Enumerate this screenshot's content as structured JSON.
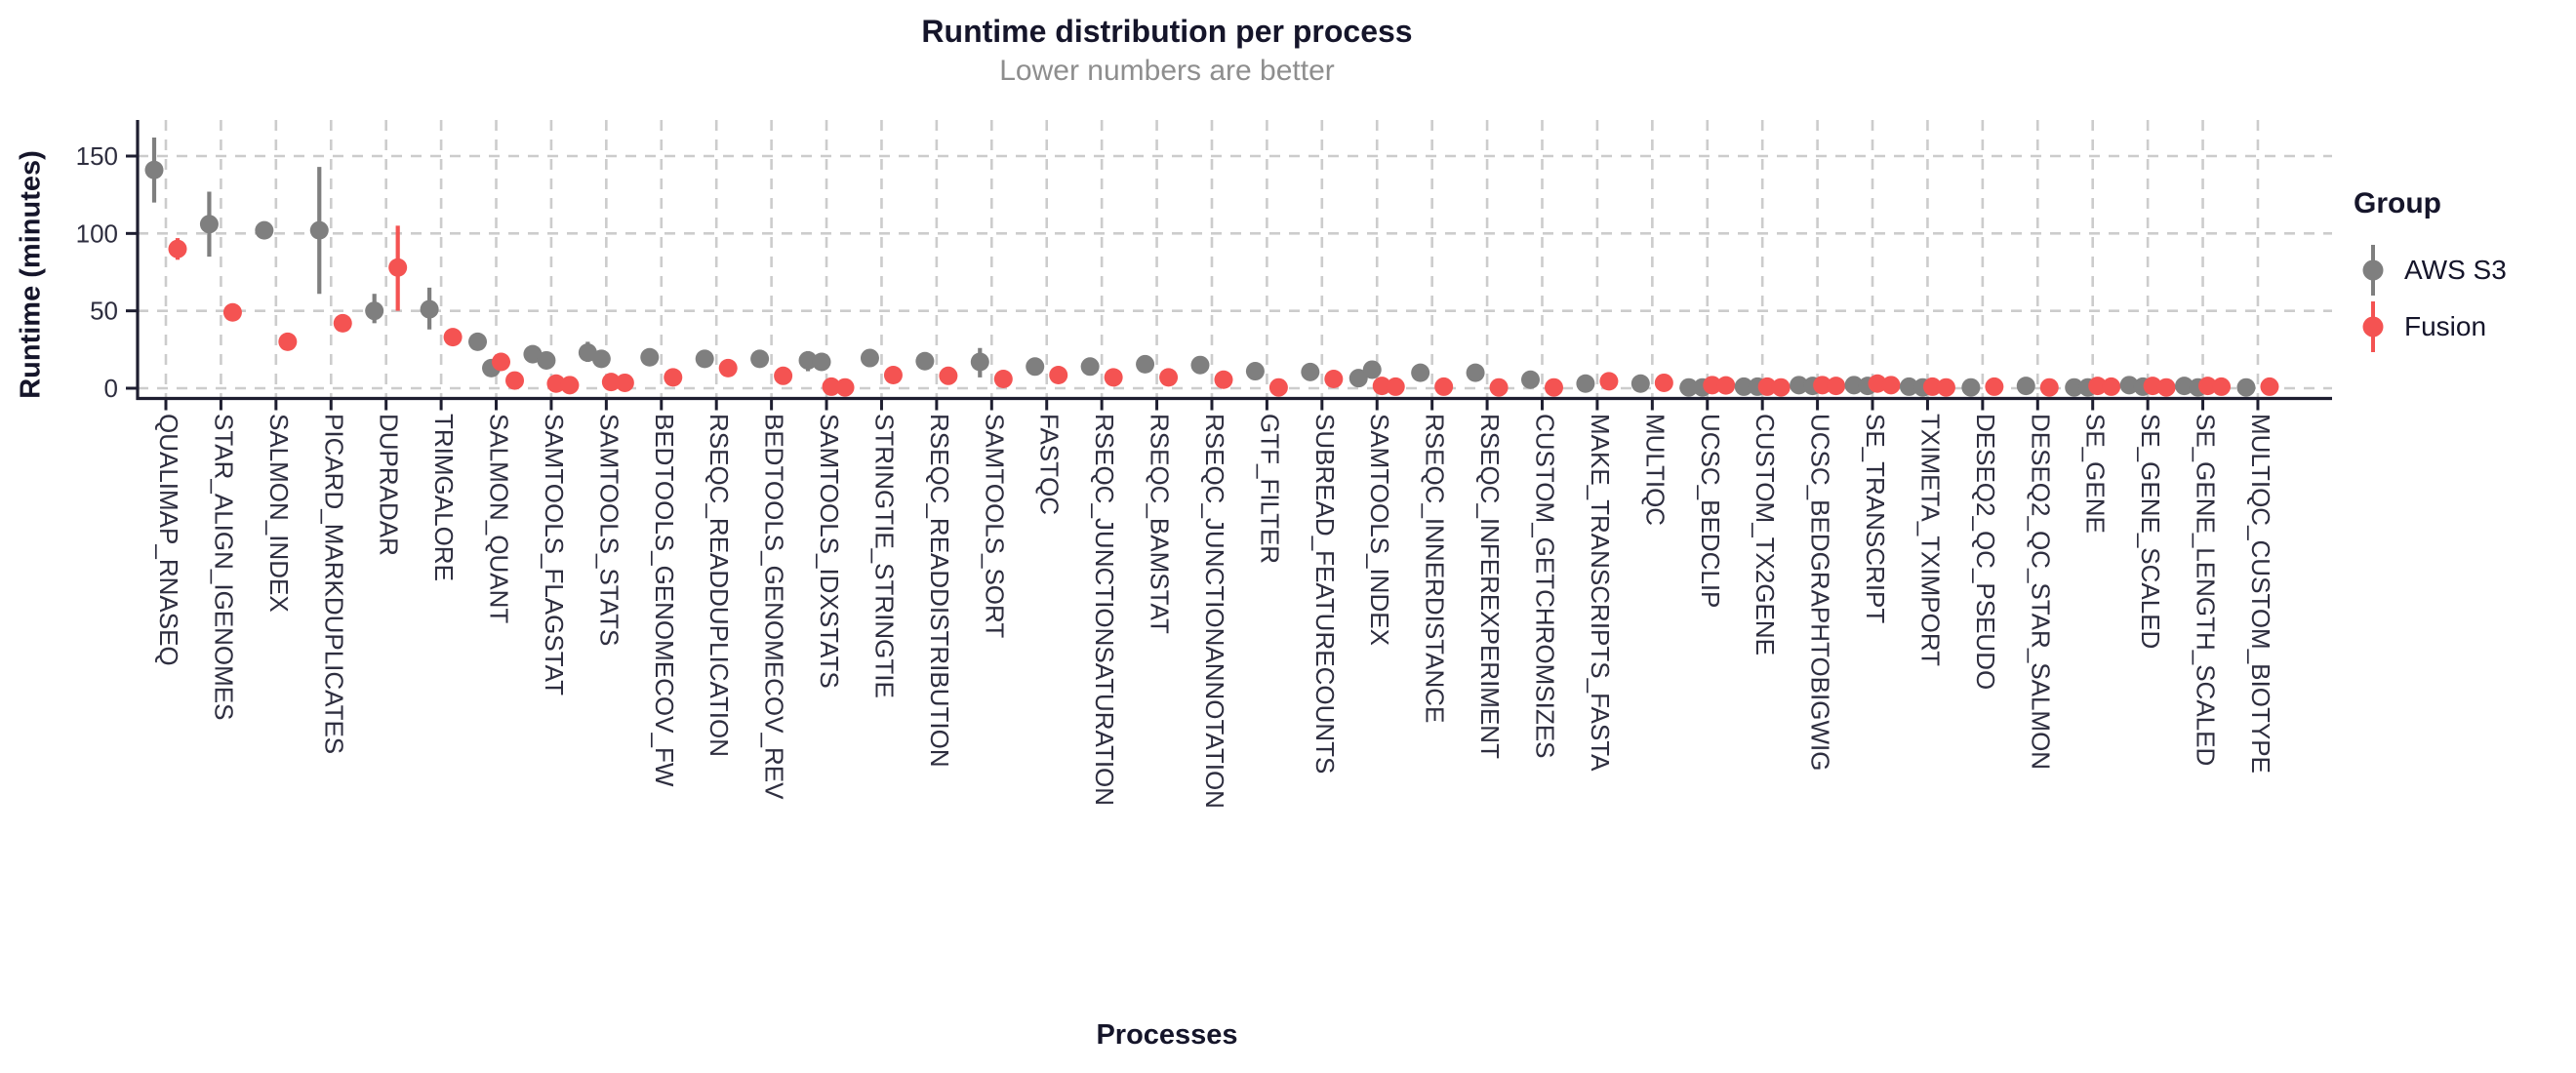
{
  "chart_data": {
    "type": "pointrange-scatter",
    "title": "Runtime distribution per process",
    "subtitle": "Lower numbers are better",
    "xlabel": "Processes",
    "ylabel": "Runtime (minutes)",
    "yticks": [
      0,
      50,
      100,
      150
    ],
    "ylim": [
      0,
      165
    ],
    "grid": "dashed-both-axes",
    "legend": {
      "title": "Group",
      "position": "right",
      "entries": [
        {
          "label": "AWS S3",
          "color": "#7f7f7f"
        },
        {
          "label": "Fusion",
          "color": "#f45352"
        }
      ]
    },
    "colors": {
      "aws": "#7f7f7f",
      "fusion": "#f45352",
      "axis": "#1e1e30",
      "grid": "#cccccc",
      "tick_text": "#2e2e3f",
      "title_text": "#15152a",
      "subtitle_text": "#8e8e8e"
    },
    "processes": [
      {
        "name": "QUALIMAP_RNASEQ",
        "aws": [
          {
            "v": 141,
            "lo": 120,
            "hi": 162
          }
        ],
        "fusion": [
          {
            "v": 90,
            "lo": 83,
            "hi": 97
          }
        ]
      },
      {
        "name": "STAR_ALIGN_IGENOMES",
        "aws": [
          {
            "v": 106,
            "lo": 85,
            "hi": 127
          }
        ],
        "fusion": [
          {
            "v": 49,
            "lo": 47,
            "hi": 51
          }
        ]
      },
      {
        "name": "SALMON_INDEX",
        "aws": [
          {
            "v": 102
          }
        ],
        "fusion": [
          {
            "v": 30
          }
        ]
      },
      {
        "name": "PICARD_MARKDUPLICATES",
        "aws": [
          {
            "v": 102,
            "lo": 61,
            "hi": 143
          }
        ],
        "fusion": [
          {
            "v": 42
          }
        ]
      },
      {
        "name": "DUPRADAR",
        "aws": [
          {
            "v": 50,
            "lo": 42,
            "hi": 61
          }
        ],
        "fusion": [
          {
            "v": 78,
            "lo": 50,
            "hi": 105
          }
        ]
      },
      {
        "name": "TRIMGALORE",
        "aws": [
          {
            "v": 51,
            "lo": 38,
            "hi": 65
          }
        ],
        "fusion": [
          {
            "v": 33
          }
        ]
      },
      {
        "name": "SALMON_QUANT",
        "aws": [
          {
            "v": 30
          },
          {
            "v": 13
          }
        ],
        "fusion": [
          {
            "v": 17
          },
          {
            "v": 5
          }
        ]
      },
      {
        "name": "SAMTOOLS_FLAGSTAT",
        "aws": [
          {
            "v": 22
          },
          {
            "v": 18
          }
        ],
        "fusion": [
          {
            "v": 3
          },
          {
            "v": 2
          }
        ]
      },
      {
        "name": "SAMTOOLS_STATS",
        "aws": [
          {
            "v": 23,
            "lo": 17,
            "hi": 30
          },
          {
            "v": 19
          }
        ],
        "fusion": [
          {
            "v": 4
          },
          {
            "v": 3.5
          }
        ]
      },
      {
        "name": "BEDTOOLS_GENOMECOV_FW",
        "aws": [
          {
            "v": 20
          }
        ],
        "fusion": [
          {
            "v": 7
          }
        ]
      },
      {
        "name": "RSEQC_READDUPLICATION",
        "aws": [
          {
            "v": 19
          }
        ],
        "fusion": [
          {
            "v": 13
          }
        ]
      },
      {
        "name": "BEDTOOLS_GENOMECOV_REV",
        "aws": [
          {
            "v": 19
          }
        ],
        "fusion": [
          {
            "v": 8
          }
        ]
      },
      {
        "name": "SAMTOOLS_IDXSTATS",
        "aws": [
          {
            "v": 18,
            "lo": 11,
            "hi": 24
          },
          {
            "v": 17
          }
        ],
        "fusion": [
          {
            "v": 1
          },
          {
            "v": 0.5
          }
        ]
      },
      {
        "name": "STRINGTIE_STRINGTIE",
        "aws": [
          {
            "v": 19.5
          }
        ],
        "fusion": [
          {
            "v": 8.5
          }
        ]
      },
      {
        "name": "RSEQC_READDISTRIBUTION",
        "aws": [
          {
            "v": 17.5
          }
        ],
        "fusion": [
          {
            "v": 8
          }
        ]
      },
      {
        "name": "SAMTOOLS_SORT",
        "aws": [
          {
            "v": 17,
            "lo": 7,
            "hi": 26
          }
        ],
        "fusion": [
          {
            "v": 6
          }
        ]
      },
      {
        "name": "FASTQC",
        "aws": [
          {
            "v": 14
          }
        ],
        "fusion": [
          {
            "v": 8.5
          }
        ]
      },
      {
        "name": "RSEQC_JUNCTIONSATURATION",
        "aws": [
          {
            "v": 14
          }
        ],
        "fusion": [
          {
            "v": 7
          }
        ]
      },
      {
        "name": "RSEQC_BAMSTAT",
        "aws": [
          {
            "v": 15.5
          }
        ],
        "fusion": [
          {
            "v": 7
          }
        ]
      },
      {
        "name": "RSEQC_JUNCTIONANNOTATION",
        "aws": [
          {
            "v": 15
          }
        ],
        "fusion": [
          {
            "v": 5.5
          }
        ]
      },
      {
        "name": "GTF_FILTER",
        "aws": [
          {
            "v": 11
          }
        ],
        "fusion": [
          {
            "v": 0.5
          }
        ]
      },
      {
        "name": "SUBREAD_FEATURECOUNTS",
        "aws": [
          {
            "v": 10.5
          }
        ],
        "fusion": [
          {
            "v": 6
          }
        ]
      },
      {
        "name": "SAMTOOLS_INDEX",
        "aws": [
          {
            "v": 6.5
          },
          {
            "v": 12
          }
        ],
        "fusion": [
          {
            "v": 1.5
          },
          {
            "v": 1
          }
        ]
      },
      {
        "name": "RSEQC_INNERDISTANCE",
        "aws": [
          {
            "v": 10
          }
        ],
        "fusion": [
          {
            "v": 1
          }
        ]
      },
      {
        "name": "RSEQC_INFEREXPERIMENT",
        "aws": [
          {
            "v": 10
          }
        ],
        "fusion": [
          {
            "v": 0.5
          }
        ]
      },
      {
        "name": "CUSTOM_GETCHROMSIZES",
        "aws": [
          {
            "v": 5.5
          }
        ],
        "fusion": [
          {
            "v": 0.5
          }
        ]
      },
      {
        "name": "MAKE_TRANSCRIPTS_FASTA",
        "aws": [
          {
            "v": 3
          }
        ],
        "fusion": [
          {
            "v": 4.5
          }
        ]
      },
      {
        "name": "MULTIQC",
        "aws": [
          {
            "v": 3
          }
        ],
        "fusion": [
          {
            "v": 3.5
          }
        ]
      },
      {
        "name": "UCSC_BEDCLIP",
        "aws": [
          {
            "v": 0.5
          },
          {
            "v": 0.5
          }
        ],
        "fusion": [
          {
            "v": 2
          },
          {
            "v": 1.8
          }
        ]
      },
      {
        "name": "CUSTOM_TX2GENE",
        "aws": [
          {
            "v": 1
          },
          {
            "v": 1
          }
        ],
        "fusion": [
          {
            "v": 1
          },
          {
            "v": 0.5
          }
        ]
      },
      {
        "name": "UCSC_BEDGRAPHTOBIGWIG",
        "aws": [
          {
            "v": 2
          },
          {
            "v": 1.5
          }
        ],
        "fusion": [
          {
            "v": 2
          },
          {
            "v": 1.5
          }
        ]
      },
      {
        "name": "SE_TRANSCRIPT",
        "aws": [
          {
            "v": 2
          },
          {
            "v": 1.5
          }
        ],
        "fusion": [
          {
            "v": 3
          },
          {
            "v": 2
          }
        ]
      },
      {
        "name": "TXIMETA_TXIMPORT",
        "aws": [
          {
            "v": 1
          },
          {
            "v": 0.5
          }
        ],
        "fusion": [
          {
            "v": 1
          },
          {
            "v": 0.5
          }
        ]
      },
      {
        "name": "DESEQ2_QC_PSEUDO",
        "aws": [
          {
            "v": 0.5
          }
        ],
        "fusion": [
          {
            "v": 1
          }
        ]
      },
      {
        "name": "DESEQ2_QC_STAR_SALMON",
        "aws": [
          {
            "v": 1.5
          }
        ],
        "fusion": [
          {
            "v": 0.5
          }
        ]
      },
      {
        "name": "SE_GENE",
        "aws": [
          {
            "v": 0.5
          },
          {
            "v": 0.5
          }
        ],
        "fusion": [
          {
            "v": 1.5
          },
          {
            "v": 1
          }
        ]
      },
      {
        "name": "SE_GENE_SCALED",
        "aws": [
          {
            "v": 2
          },
          {
            "v": 1
          }
        ],
        "fusion": [
          {
            "v": 1.5
          },
          {
            "v": 0.5
          }
        ]
      },
      {
        "name": "SE_GENE_LENGTH_SCALED",
        "aws": [
          {
            "v": 1.5
          },
          {
            "v": 0.5
          }
        ],
        "fusion": [
          {
            "v": 1.5
          },
          {
            "v": 1
          }
        ]
      },
      {
        "name": "MULTIQC_CUSTOM_BIOTYPE",
        "aws": [
          {
            "v": 0.5
          }
        ],
        "fusion": [
          {
            "v": 1
          }
        ]
      }
    ]
  }
}
